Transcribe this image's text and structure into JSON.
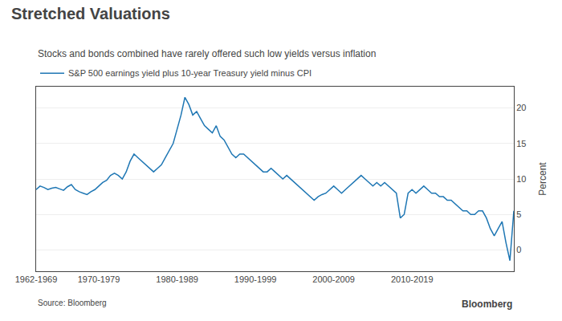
{
  "chart_data": {
    "type": "line",
    "title": "Stretched Valuations",
    "subtitle": "Stocks and bonds combined have rarely offered such low yields versus inflation",
    "ylabel": "Percent",
    "annotations": [
      "Source: Bloomberg",
      "Bloomberg"
    ],
    "x": [
      1962.0,
      1962.5,
      1963.0,
      1963.5,
      1964.0,
      1964.5,
      1965.0,
      1965.5,
      1966.0,
      1966.5,
      1967.0,
      1967.5,
      1968.0,
      1968.5,
      1969.0,
      1969.5,
      1970.0,
      1970.5,
      1971.0,
      1971.5,
      1972.0,
      1972.5,
      1973.0,
      1973.5,
      1974.0,
      1974.5,
      1975.0,
      1975.5,
      1976.0,
      1976.5,
      1977.0,
      1977.5,
      1978.0,
      1978.5,
      1979.0,
      1979.5,
      1980.0,
      1980.5,
      1981.0,
      1981.5,
      1982.0,
      1982.5,
      1983.0,
      1983.5,
      1984.0,
      1984.5,
      1985.0,
      1985.5,
      1986.0,
      1986.5,
      1987.0,
      1987.5,
      1988.0,
      1988.5,
      1989.0,
      1989.5,
      1990.0,
      1990.5,
      1991.0,
      1991.5,
      1992.0,
      1992.5,
      1993.0,
      1993.5,
      1994.0,
      1994.5,
      1995.0,
      1995.5,
      1996.0,
      1996.5,
      1997.0,
      1997.5,
      1998.0,
      1998.5,
      1999.0,
      1999.5,
      2000.0,
      2000.5,
      2001.0,
      2001.5,
      2002.0,
      2002.5,
      2003.0,
      2003.5,
      2004.0,
      2004.5,
      2005.0,
      2005.5,
      2006.0,
      2006.5,
      2007.0,
      2007.5,
      2008.0,
      2008.5,
      2009.0,
      2009.5,
      2010.0,
      2010.5,
      2011.0,
      2011.5,
      2012.0,
      2012.5,
      2013.0,
      2013.5,
      2014.0,
      2014.5,
      2015.0,
      2015.5,
      2016.0,
      2016.5,
      2017.0,
      2017.5,
      2018.0,
      2018.5,
      2019.0,
      2019.5,
      2020.0,
      2020.5,
      2021.0,
      2021.5,
      2022.0,
      2022.5,
      2023.0
    ],
    "series": [
      {
        "name": "S&P 500 earnings yield plus 10-year Treasury yield minus CPI",
        "values": [
          8.5,
          9.0,
          8.8,
          8.5,
          8.7,
          8.8,
          8.6,
          8.4,
          8.9,
          9.2,
          8.5,
          8.2,
          8.0,
          7.8,
          8.2,
          8.5,
          9.0,
          9.5,
          9.8,
          10.5,
          10.8,
          10.5,
          10.0,
          11.0,
          12.5,
          13.5,
          13.0,
          12.5,
          12.0,
          11.5,
          11.0,
          11.5,
          12.0,
          13.0,
          14.0,
          15.0,
          17.0,
          19.0,
          21.5,
          20.5,
          19.0,
          19.5,
          18.5,
          17.5,
          17.0,
          16.5,
          17.5,
          16.0,
          15.5,
          14.5,
          13.5,
          13.0,
          13.5,
          13.5,
          13.0,
          12.5,
          12.0,
          11.5,
          11.0,
          11.0,
          11.5,
          11.0,
          10.5,
          10.0,
          10.5,
          10.0,
          9.5,
          9.0,
          8.5,
          8.0,
          7.5,
          7.0,
          7.5,
          7.8,
          8.0,
          8.5,
          9.0,
          8.5,
          8.0,
          8.5,
          9.0,
          9.5,
          10.0,
          10.5,
          10.0,
          9.5,
          9.0,
          9.5,
          9.0,
          9.5,
          9.0,
          8.5,
          8.0,
          4.5,
          5.0,
          8.0,
          8.5,
          8.0,
          8.5,
          9.0,
          8.5,
          8.0,
          8.0,
          7.5,
          7.5,
          7.0,
          7.0,
          6.5,
          6.0,
          5.5,
          5.5,
          5.0,
          5.0,
          5.5,
          5.5,
          4.5,
          3.0,
          2.0,
          3.0,
          4.0,
          1.0,
          -1.5,
          5.5
        ]
      }
    ],
    "xlim": [
      1962,
      2023
    ],
    "xticks": [
      {
        "value": 1962,
        "label": "1962-1969"
      },
      {
        "value": 1970,
        "label": "1970-1979"
      },
      {
        "value": 1980,
        "label": "1980-1989"
      },
      {
        "value": 1990,
        "label": "1990-1999"
      },
      {
        "value": 2000,
        "label": "2000-2009"
      },
      {
        "value": 2010,
        "label": "2010-2019"
      }
    ],
    "ylim": [
      -3,
      23
    ],
    "yticks": [
      0,
      5,
      10,
      15,
      20
    ],
    "grid": true,
    "legend": "upper left"
  }
}
